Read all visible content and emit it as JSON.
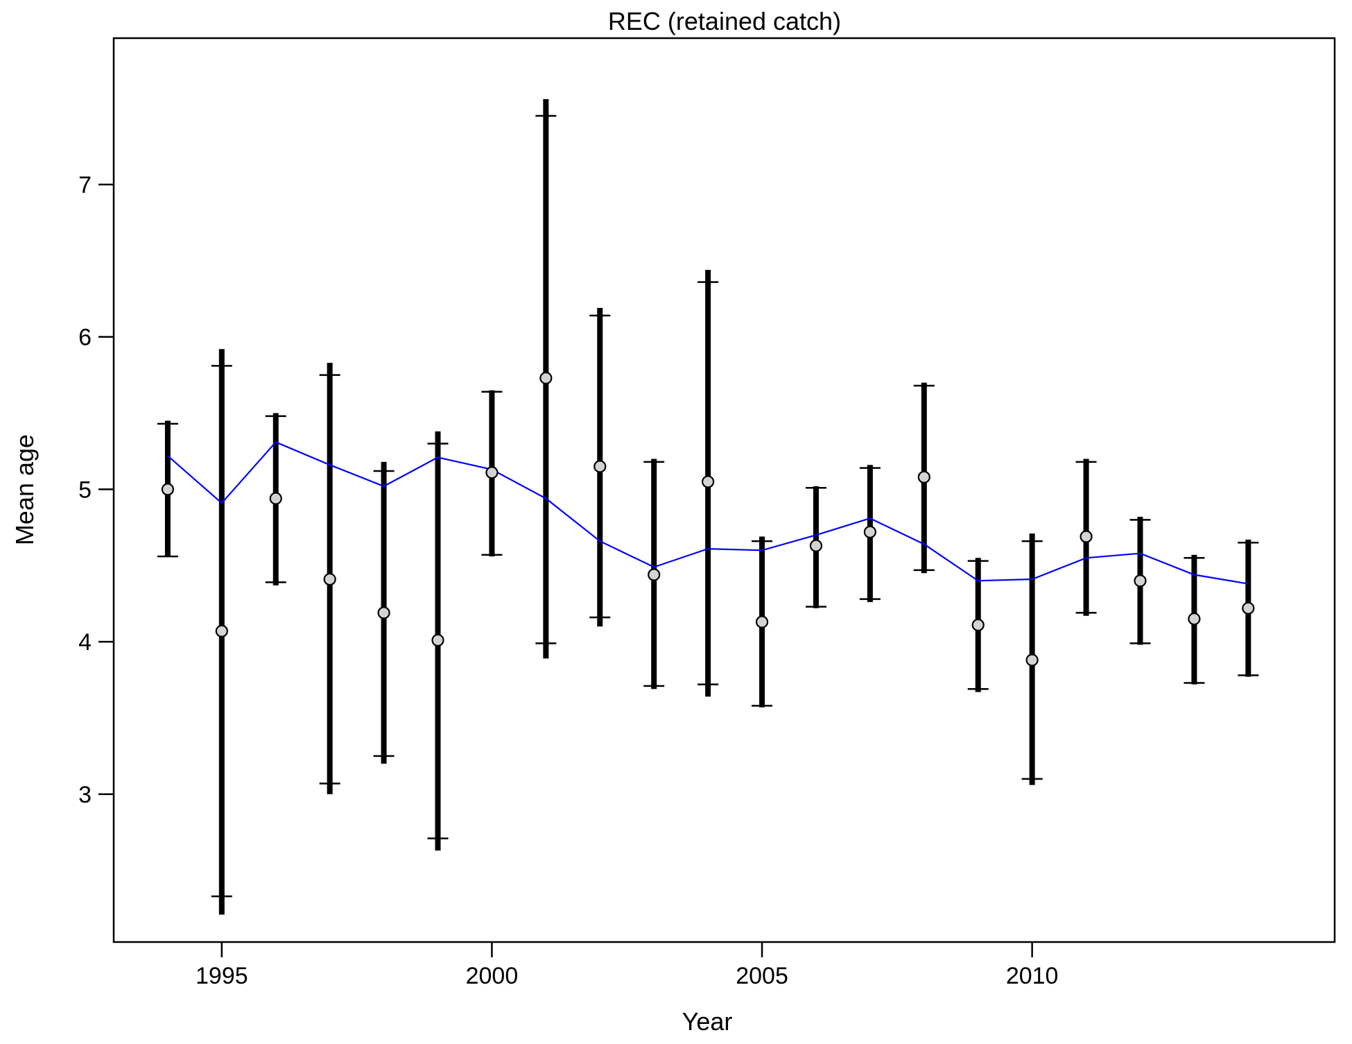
{
  "chart_data": {
    "type": "scatter",
    "title": "REC (retained catch)",
    "xlabel": "Year",
    "ylabel": "Mean age",
    "xlim": [
      1993.0,
      2015.6
    ],
    "ylim": [
      2.03,
      7.96
    ],
    "x_ticks": [
      1995,
      2000,
      2005,
      2010
    ],
    "y_ticks": [
      3,
      4,
      5,
      6,
      7
    ],
    "grid": false,
    "legend": "none",
    "colors": {
      "observed_point_fill": "#d3d3d3",
      "expected_line": "#0000ff",
      "error_bars": "#000000"
    },
    "series": [
      {
        "kind": "observed",
        "x": [
          1994,
          1995,
          1996,
          1997,
          1998,
          1999,
          2000,
          2001,
          2002,
          2003,
          2004,
          2005,
          2006,
          2007,
          2008,
          2009,
          2010,
          2011,
          2012,
          2013,
          2014
        ],
        "y": [
          5.0,
          4.07,
          4.94,
          4.41,
          4.19,
          4.01,
          5.11,
          5.73,
          5.15,
          4.44,
          5.05,
          4.13,
          4.63,
          4.72,
          5.08,
          4.11,
          3.88,
          4.69,
          4.4,
          4.15,
          4.22
        ]
      },
      {
        "kind": "expected",
        "x": [
          1994,
          1995,
          1996,
          1997,
          1998,
          1999,
          2000,
          2001,
          2002,
          2003,
          2004,
          2005,
          2006,
          2007,
          2008,
          2009,
          2010,
          2011,
          2012,
          2013,
          2014
        ],
        "y": [
          5.22,
          4.91,
          5.31,
          5.16,
          5.02,
          5.21,
          5.13,
          4.94,
          4.66,
          4.49,
          4.61,
          4.6,
          4.7,
          4.81,
          4.64,
          4.4,
          4.41,
          4.55,
          4.58,
          4.44,
          4.38
        ]
      }
    ],
    "error_bars": {
      "outer_low": [
        4.56,
        2.21,
        4.37,
        3.0,
        3.2,
        2.63,
        4.56,
        3.89,
        4.1,
        3.69,
        3.64,
        3.57,
        4.22,
        4.26,
        4.45,
        3.67,
        3.06,
        4.17,
        3.98,
        3.72,
        3.77
      ],
      "outer_high": [
        5.45,
        5.92,
        5.5,
        5.83,
        5.18,
        5.38,
        5.65,
        7.56,
        6.19,
        5.2,
        6.44,
        4.69,
        5.02,
        5.16,
        5.7,
        4.55,
        4.71,
        5.2,
        4.82,
        4.57,
        4.67
      ],
      "inner_low": [
        4.56,
        2.33,
        4.39,
        3.07,
        3.25,
        2.71,
        4.57,
        3.99,
        4.16,
        3.71,
        3.72,
        3.58,
        4.23,
        4.28,
        4.47,
        3.69,
        3.1,
        4.19,
        3.99,
        3.73,
        3.78
      ],
      "inner_high": [
        5.43,
        5.81,
        5.48,
        5.75,
        5.12,
        5.3,
        5.64,
        7.45,
        6.14,
        5.18,
        6.36,
        4.66,
        5.01,
        5.14,
        5.68,
        4.53,
        4.66,
        5.18,
        4.8,
        4.55,
        4.65
      ]
    }
  }
}
